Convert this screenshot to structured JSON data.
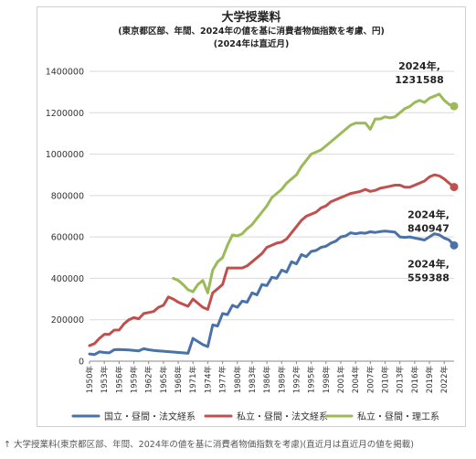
{
  "chart_data": {
    "type": "line",
    "title": "大学授業料",
    "subtitle": "(東京都区部、年間、2024年の値を基に消費者物価指数を考慮、円)",
    "note": "(2024年は直近月)",
    "xlabel": "",
    "ylabel": "",
    "ylim": [
      0,
      1400000
    ],
    "y_ticks": [
      "0",
      "200000",
      "400000",
      "600000",
      "800000",
      "1000000",
      "1200000",
      "1400000"
    ],
    "x_tick_labels": [
      "1950年",
      "1953年",
      "1956年",
      "1959年",
      "1962年",
      "1965年",
      "1968年",
      "1971年",
      "1974年",
      "1977年",
      "1980年",
      "1983年",
      "1986年",
      "1989年",
      "1992年",
      "1995年",
      "1998年",
      "2001年",
      "2004年",
      "2007年",
      "2010年",
      "2013年",
      "2016年",
      "2019年",
      "2022年"
    ],
    "grid": true,
    "legend": "bottom",
    "x": [
      1950,
      1951,
      1952,
      1953,
      1954,
      1955,
      1956,
      1957,
      1958,
      1959,
      1960,
      1961,
      1962,
      1963,
      1964,
      1965,
      1966,
      1967,
      1968,
      1969,
      1970,
      1971,
      1972,
      1973,
      1974,
      1975,
      1976,
      1977,
      1978,
      1979,
      1980,
      1981,
      1982,
      1983,
      1984,
      1985,
      1986,
      1987,
      1988,
      1989,
      1990,
      1991,
      1992,
      1993,
      1994,
      1995,
      1996,
      1997,
      1998,
      1999,
      2000,
      2001,
      2002,
      2003,
      2004,
      2005,
      2006,
      2007,
      2008,
      2009,
      2010,
      2011,
      2012,
      2013,
      2014,
      2015,
      2016,
      2017,
      2018,
      2019,
      2020,
      2021,
      2022,
      2023,
      2024
    ],
    "series": [
      {
        "name": "国立・昼間・法文経系",
        "color": "#4a72a8",
        "values": [
          35000,
          32000,
          45000,
          42000,
          40000,
          55000,
          56000,
          55000,
          54000,
          52000,
          50000,
          60000,
          55000,
          52000,
          50000,
          48000,
          46000,
          44000,
          42000,
          40000,
          38000,
          110000,
          95000,
          80000,
          70000,
          175000,
          170000,
          230000,
          225000,
          270000,
          260000,
          290000,
          285000,
          330000,
          320000,
          370000,
          365000,
          405000,
          400000,
          440000,
          430000,
          480000,
          470000,
          515000,
          505000,
          530000,
          535000,
          550000,
          555000,
          570000,
          580000,
          600000,
          605000,
          620000,
          615000,
          620000,
          618000,
          625000,
          622000,
          626000,
          628000,
          626000,
          623000,
          600000,
          598000,
          600000,
          595000,
          590000,
          585000,
          600000,
          615000,
          610000,
          595000,
          585000,
          559388
        ]
      },
      {
        "name": "私立・昼間・法文経系",
        "color": "#c0504d",
        "values": [
          75000,
          85000,
          110000,
          130000,
          130000,
          150000,
          150000,
          180000,
          200000,
          210000,
          205000,
          230000,
          235000,
          240000,
          260000,
          270000,
          310000,
          300000,
          285000,
          275000,
          265000,
          300000,
          280000,
          260000,
          250000,
          330000,
          350000,
          370000,
          450000,
          450000,
          450000,
          450000,
          460000,
          480000,
          500000,
          520000,
          550000,
          560000,
          570000,
          575000,
          590000,
          620000,
          650000,
          680000,
          700000,
          710000,
          720000,
          740000,
          750000,
          770000,
          780000,
          790000,
          800000,
          810000,
          815000,
          820000,
          830000,
          820000,
          825000,
          835000,
          840000,
          845000,
          850000,
          850000,
          840000,
          840000,
          850000,
          860000,
          870000,
          890000,
          900000,
          895000,
          880000,
          860000,
          840947
        ]
      },
      {
        "name": "私立・昼間・理工系",
        "color": "#9bbb59",
        "values": [
          null,
          null,
          null,
          null,
          null,
          null,
          null,
          null,
          null,
          null,
          null,
          null,
          null,
          null,
          null,
          null,
          null,
          400000,
          390000,
          370000,
          345000,
          335000,
          370000,
          390000,
          330000,
          440000,
          480000,
          500000,
          560000,
          610000,
          605000,
          615000,
          640000,
          660000,
          690000,
          720000,
          750000,
          790000,
          810000,
          830000,
          860000,
          880000,
          900000,
          940000,
          970000,
          1000000,
          1010000,
          1020000,
          1040000,
          1060000,
          1080000,
          1100000,
          1120000,
          1140000,
          1150000,
          1150000,
          1150000,
          1120000,
          1170000,
          1170000,
          1180000,
          1175000,
          1180000,
          1200000,
          1220000,
          1230000,
          1250000,
          1260000,
          1250000,
          1270000,
          1280000,
          1290000,
          1260000,
          1240000,
          1231588
        ]
      }
    ],
    "annotations": [
      {
        "series": 2,
        "label": "2024年,\n1231588"
      },
      {
        "series": 1,
        "label": "2024年,\n840947"
      },
      {
        "series": 0,
        "label": "2024年,\n559388"
      }
    ]
  },
  "caption": "↑ 大学授業料(東京都区部、年間、2024年の値を基に消費者物価指数を考慮)(直近月は直近月の値を掲載)"
}
